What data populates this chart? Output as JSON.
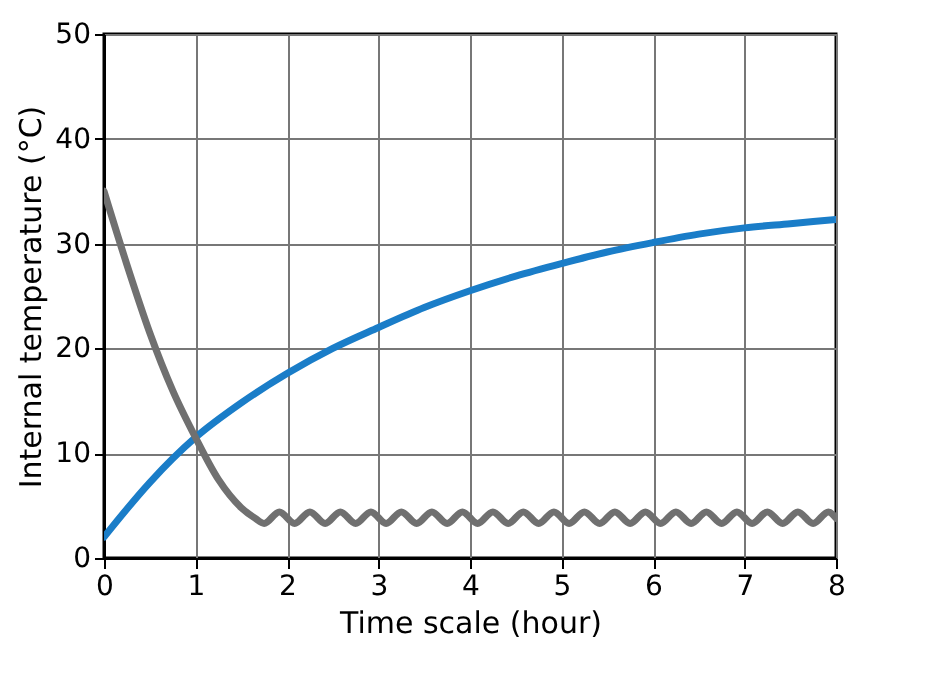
{
  "chart_data": {
    "type": "line",
    "xlabel": "Time scale (hour)",
    "ylabel": "Internal temperature (°C)",
    "xlim": [
      0,
      8
    ],
    "ylim": [
      0,
      50
    ],
    "xticks": [
      0,
      1,
      2,
      3,
      4,
      5,
      6,
      7,
      8
    ],
    "yticks": [
      0,
      10,
      20,
      30,
      40,
      50
    ],
    "grid": true,
    "marker": "none",
    "line_style": "solid",
    "series": [
      {
        "color": "#1a7dc8",
        "x": [
          0,
          0.5,
          1,
          1.5,
          2,
          2.5,
          3,
          3.5,
          4,
          4.5,
          5,
          5.5,
          6,
          6.5,
          7,
          7.5,
          8
        ],
        "values": [
          2,
          7.2,
          11.5,
          14.8,
          17.6,
          20,
          22,
          23.9,
          25.5,
          26.9,
          28.1,
          29.2,
          30.1,
          30.9,
          31.5,
          31.9,
          32.3
        ]
      },
      {
        "color": "#707070",
        "x": [
          0,
          0.25,
          0.5,
          0.75,
          1,
          1.25,
          1.5,
          1.65,
          1.75,
          1.917,
          2.083,
          2.25,
          2.417,
          2.583,
          2.75,
          2.917,
          3.083,
          3.25,
          3.417,
          3.583,
          3.75,
          3.917,
          4.083,
          4.25,
          4.417,
          4.583,
          4.75,
          4.917,
          5.083,
          5.25,
          5.417,
          5.583,
          5.75,
          5.917,
          6.083,
          6.25,
          6.417,
          6.583,
          6.75,
          6.917,
          7.083,
          7.25,
          7.417,
          7.583,
          7.75,
          7.917,
          8
        ],
        "values": [
          35,
          28,
          21.5,
          16,
          11.5,
          7.5,
          4.8,
          3.8,
          3.3,
          4.4,
          3.3,
          4.4,
          3.3,
          4.4,
          3.3,
          4.4,
          3.3,
          4.4,
          3.3,
          4.4,
          3.3,
          4.4,
          3.3,
          4.4,
          3.3,
          4.4,
          3.3,
          4.4,
          3.3,
          4.4,
          3.3,
          4.4,
          3.3,
          4.4,
          3.3,
          4.4,
          3.3,
          4.4,
          3.3,
          4.4,
          3.3,
          4.4,
          3.3,
          4.4,
          3.3,
          4.4,
          3.8
        ]
      }
    ]
  }
}
